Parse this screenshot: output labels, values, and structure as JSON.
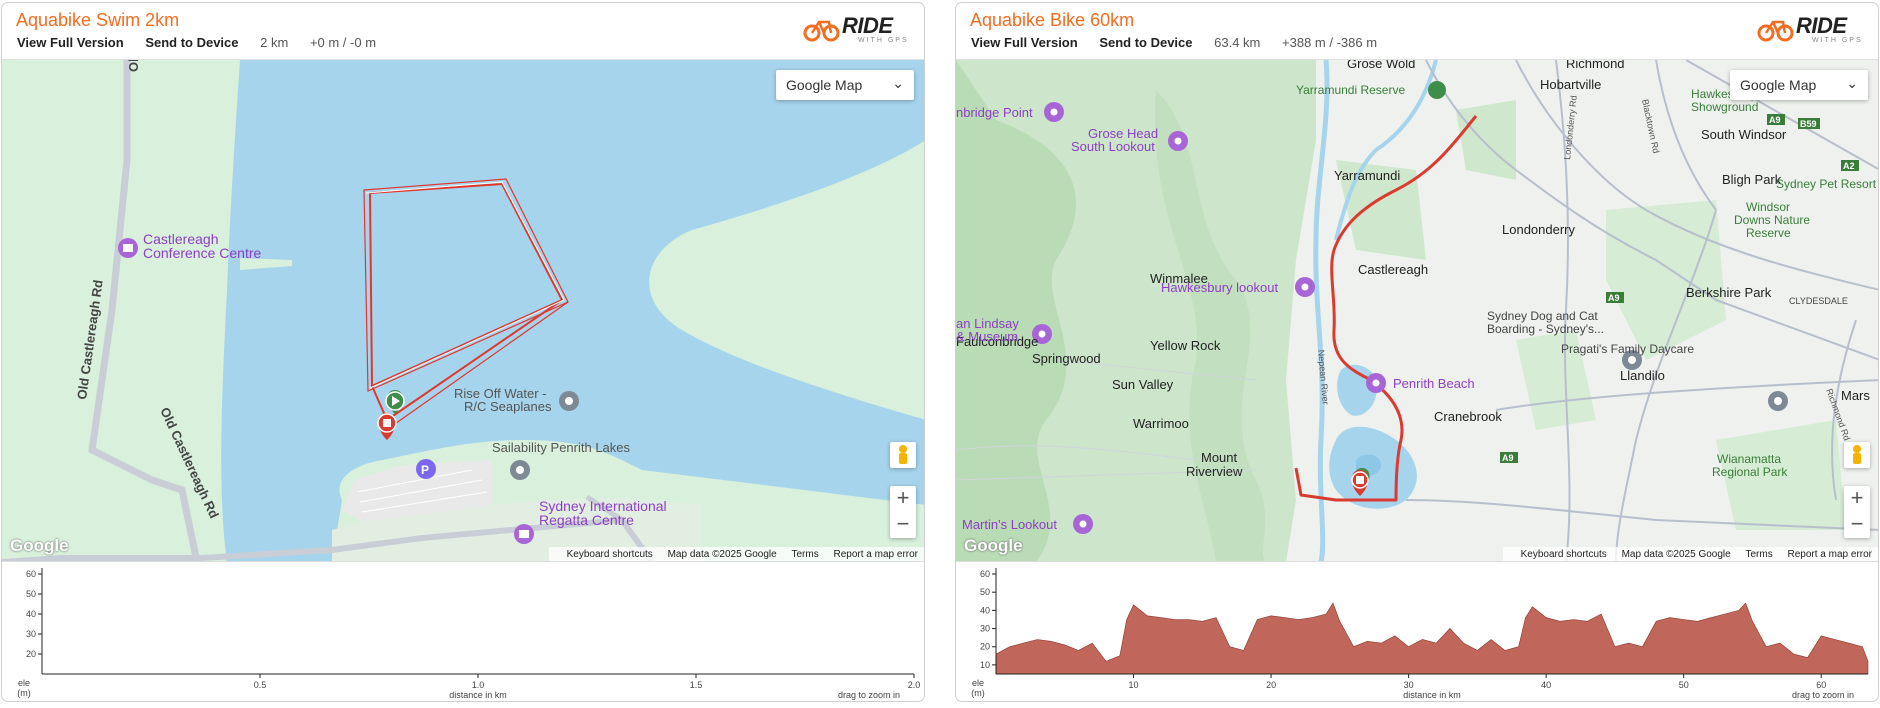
{
  "left": {
    "title": "Aquabike Swim 2km",
    "view_full": "View Full Version",
    "send_device": "Send to Device",
    "distance": "2 km",
    "elevation": "+0 m / -0 m",
    "logo_text": "RIDE",
    "logo_sub": "WITH GPS",
    "map_type": "Google Map",
    "google": "Google",
    "footer": {
      "shortcuts": "Keyboard shortcuts",
      "mapdata": "Map data ©2025 Google",
      "terms": "Terms",
      "report": "Report a map error"
    },
    "places": {
      "castlereagh_cc_1": "Castlereagh",
      "castlereagh_cc_2": "Conference Centre",
      "rise_off_1": "Rise Off Water -",
      "rise_off_2": "R/C Seaplanes",
      "sailability": "Sailability Penrith Lakes",
      "regatta_1": "Sydney International",
      "regatta_2": "Regatta Centre",
      "road_1": "Old Castlereagh Rd",
      "road_2": "Old Castlereagh Rd",
      "road_3": "Old",
      "parking": "P"
    },
    "chart_data": {
      "type": "area",
      "ylabel": "ele (m)",
      "xlabel": "distance in km",
      "hint": "drag to zoom in",
      "yticks": [
        20,
        30,
        40,
        50,
        60
      ],
      "xticks": [
        "0.5",
        "1.0",
        "1.5",
        "2.0"
      ],
      "ylim": [
        10,
        60
      ],
      "xlim": [
        0,
        2.0
      ],
      "series": []
    }
  },
  "right": {
    "title": "Aquabike Bike 60km",
    "view_full": "View Full Version",
    "send_device": "Send to Device",
    "distance": "63.4 km",
    "elevation": "+388 m / -386 m",
    "logo_text": "RIDE",
    "logo_sub": "WITH GPS",
    "map_type": "Google Map",
    "google": "Google",
    "footer": {
      "shortcuts": "Keyboard shortcuts",
      "mapdata": "Map data ©2025 Google",
      "terms": "Terms",
      "report": "Report a map error"
    },
    "places": {
      "richmond": "Richmond",
      "hobartville": "Hobartville",
      "grose_wold": "Grose Wold",
      "yarramundi_reserve": "Yarramundi Reserve",
      "hawkesbury_showground_1": "Hawkesbury",
      "hawkesbury_showground_2": "Showground",
      "south_windsor": "South Windsor",
      "bridge_point": "nbridge Point",
      "grose_head_1": "Grose Head",
      "grose_head_2": "South Lookout",
      "yarramundi": "Yarramundi",
      "bligh_park": "Bligh Park",
      "sydney_pet": "Sydney Pet Resort",
      "windsor_downs_1": "Windsor",
      "windsor_downs_2": "Downs Nature",
      "windsor_downs_3": "Reserve",
      "londonderry": "Londonderry",
      "hawkesbury_lookout": "Hawkesbury lookout",
      "castlereagh": "Castlereagh",
      "winmalee": "Winmalee",
      "lindsay_1": "an Lindsay",
      "lindsay_2": "& Museum",
      "berkshire_park": "Berkshire Park",
      "clydesdale": "CLYDESDALE",
      "dog_cat_1": "Sydney Dog and Cat",
      "dog_cat_2": "Boarding - Sydney's...",
      "penrith_beach": "Penrith Beach",
      "faulconbridge": "Faulconbridge",
      "yellow_rock": "Yellow Rock",
      "springwood": "Springwood",
      "pragati": "Pragati's Family Daycare",
      "llandilo": "Llandilo",
      "sun_valley": "Sun Valley",
      "mars": "Mars",
      "warrimoo": "Warrimoo",
      "cranebrook": "Cranebrook",
      "wianamatta_1": "Wianamatta",
      "wianamatta_2": "Regional Park",
      "martins_lookout": "Martin's Lookout",
      "mount_riverview_1": "Mount",
      "mount_riverview_2": "Riverview",
      "nepean": "Nepean River",
      "londonderry_rd": "Londonderry Rd",
      "blacktown_rd": "Blacktown Rd",
      "richmond_rd": "Richmond Rd",
      "a9": "A9",
      "b59": "B59",
      "a2": "A2"
    },
    "chart_data": {
      "type": "area",
      "ylabel": "ele (m)",
      "xlabel": "distance in km",
      "hint": "drag to zoom in",
      "yticks": [
        10,
        20,
        30,
        40,
        50,
        60
      ],
      "xticks": [
        10,
        20,
        30,
        40,
        50,
        60
      ],
      "ylim": [
        5,
        60
      ],
      "xlim": [
        0,
        63.4
      ],
      "fill_color": "#c0665a",
      "series": [
        {
          "x": [
            0,
            1,
            2,
            3,
            4,
            5,
            6,
            7,
            8,
            9,
            9.5,
            10,
            11,
            12,
            13,
            14,
            15,
            16,
            17,
            18,
            19,
            20,
            21,
            22,
            23,
            24,
            24.5,
            25,
            26,
            27,
            28,
            29,
            30,
            31,
            32,
            33,
            34,
            35,
            36,
            37,
            38,
            38.5,
            39,
            40,
            41,
            42,
            43,
            44,
            45,
            46,
            47,
            48,
            49,
            50,
            51,
            52,
            53,
            54,
            54.5,
            55,
            56,
            57,
            58,
            59,
            60,
            61,
            62,
            63,
            63.4
          ],
          "y": [
            16,
            20,
            22,
            24,
            23,
            21,
            18,
            22,
            12,
            15,
            35,
            43,
            37,
            36,
            35,
            35,
            34,
            36,
            20,
            18,
            35,
            37,
            36,
            35,
            36,
            38,
            44,
            34,
            20,
            23,
            22,
            26,
            20,
            24,
            22,
            30,
            22,
            18,
            24,
            18,
            20,
            36,
            42,
            36,
            34,
            35,
            34,
            38,
            20,
            22,
            20,
            34,
            36,
            35,
            34,
            36,
            38,
            40,
            44,
            34,
            20,
            22,
            16,
            14,
            26,
            24,
            22,
            20,
            12
          ]
        }
      ]
    }
  }
}
